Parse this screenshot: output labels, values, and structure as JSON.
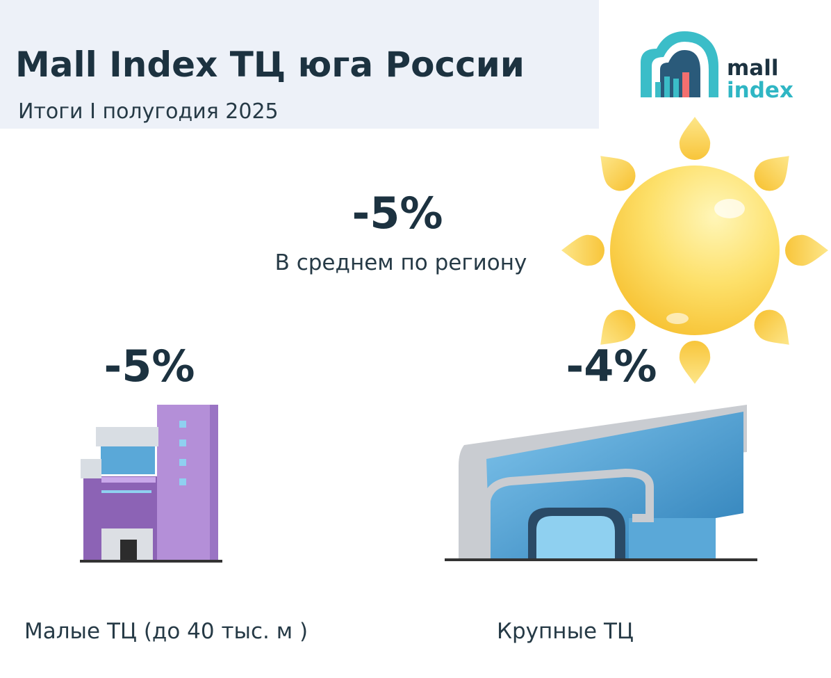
{
  "header": {
    "title": "Mall Index ТЦ юга России",
    "subtitle": "Итоги I полугодия 2025"
  },
  "logo": {
    "line1": "mall",
    "line2": "index"
  },
  "region": {
    "value": "-5%",
    "label": "В среднем по региону"
  },
  "segments": [
    {
      "value": "-5%",
      "label": "Малые ТЦ (до 40 тыс. м )"
    },
    {
      "value": "-4%",
      "label": "Крупные ТЦ"
    }
  ]
}
